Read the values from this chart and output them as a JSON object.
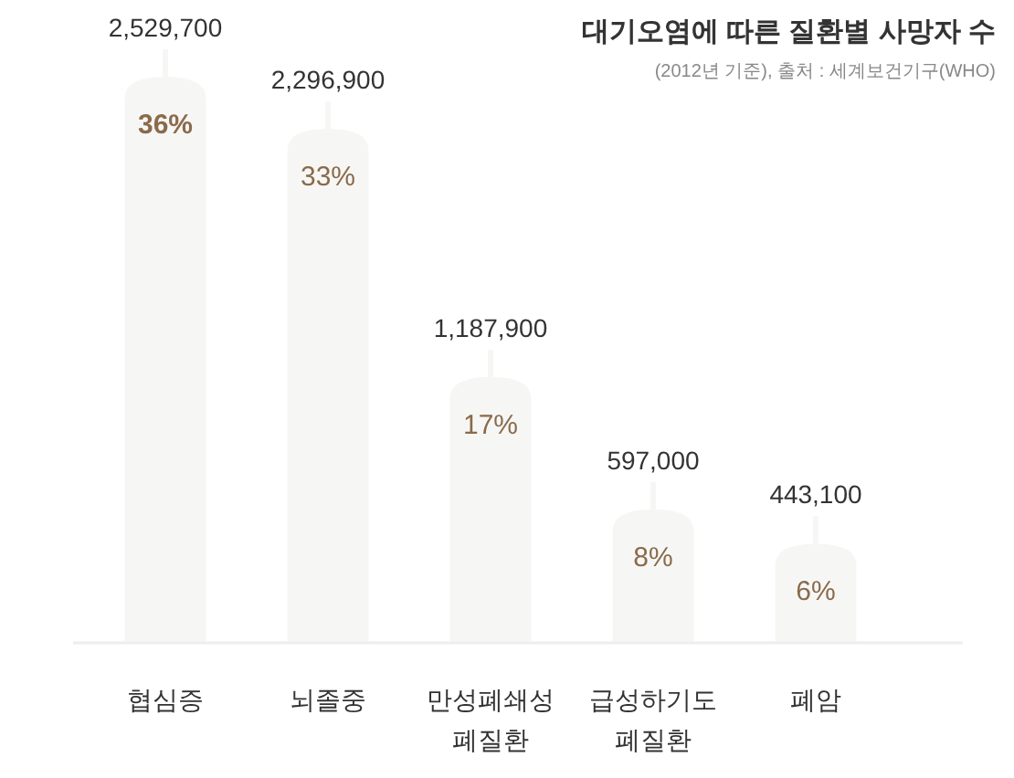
{
  "chart_data": {
    "type": "bar",
    "title": "대기오염에 따른 질환별 사망자 수",
    "subtitle": "(2012년 기준), 출처 : 세계보건기구(WHO)",
    "categories": [
      "협심증",
      "뇌졸중",
      "만성폐쇄성 폐질환",
      "급성하기도 폐질환",
      "폐암"
    ],
    "values": [
      2529700,
      2296900,
      1187900,
      597000,
      443100
    ],
    "value_labels": [
      "2,529,700",
      "2,296,900",
      "1,187,900",
      "597,000",
      "443,100"
    ],
    "color": "#f6f7f5",
    "annotations": [
      "36%",
      "33%",
      "17%",
      "8%",
      "6%"
    ]
  }
}
